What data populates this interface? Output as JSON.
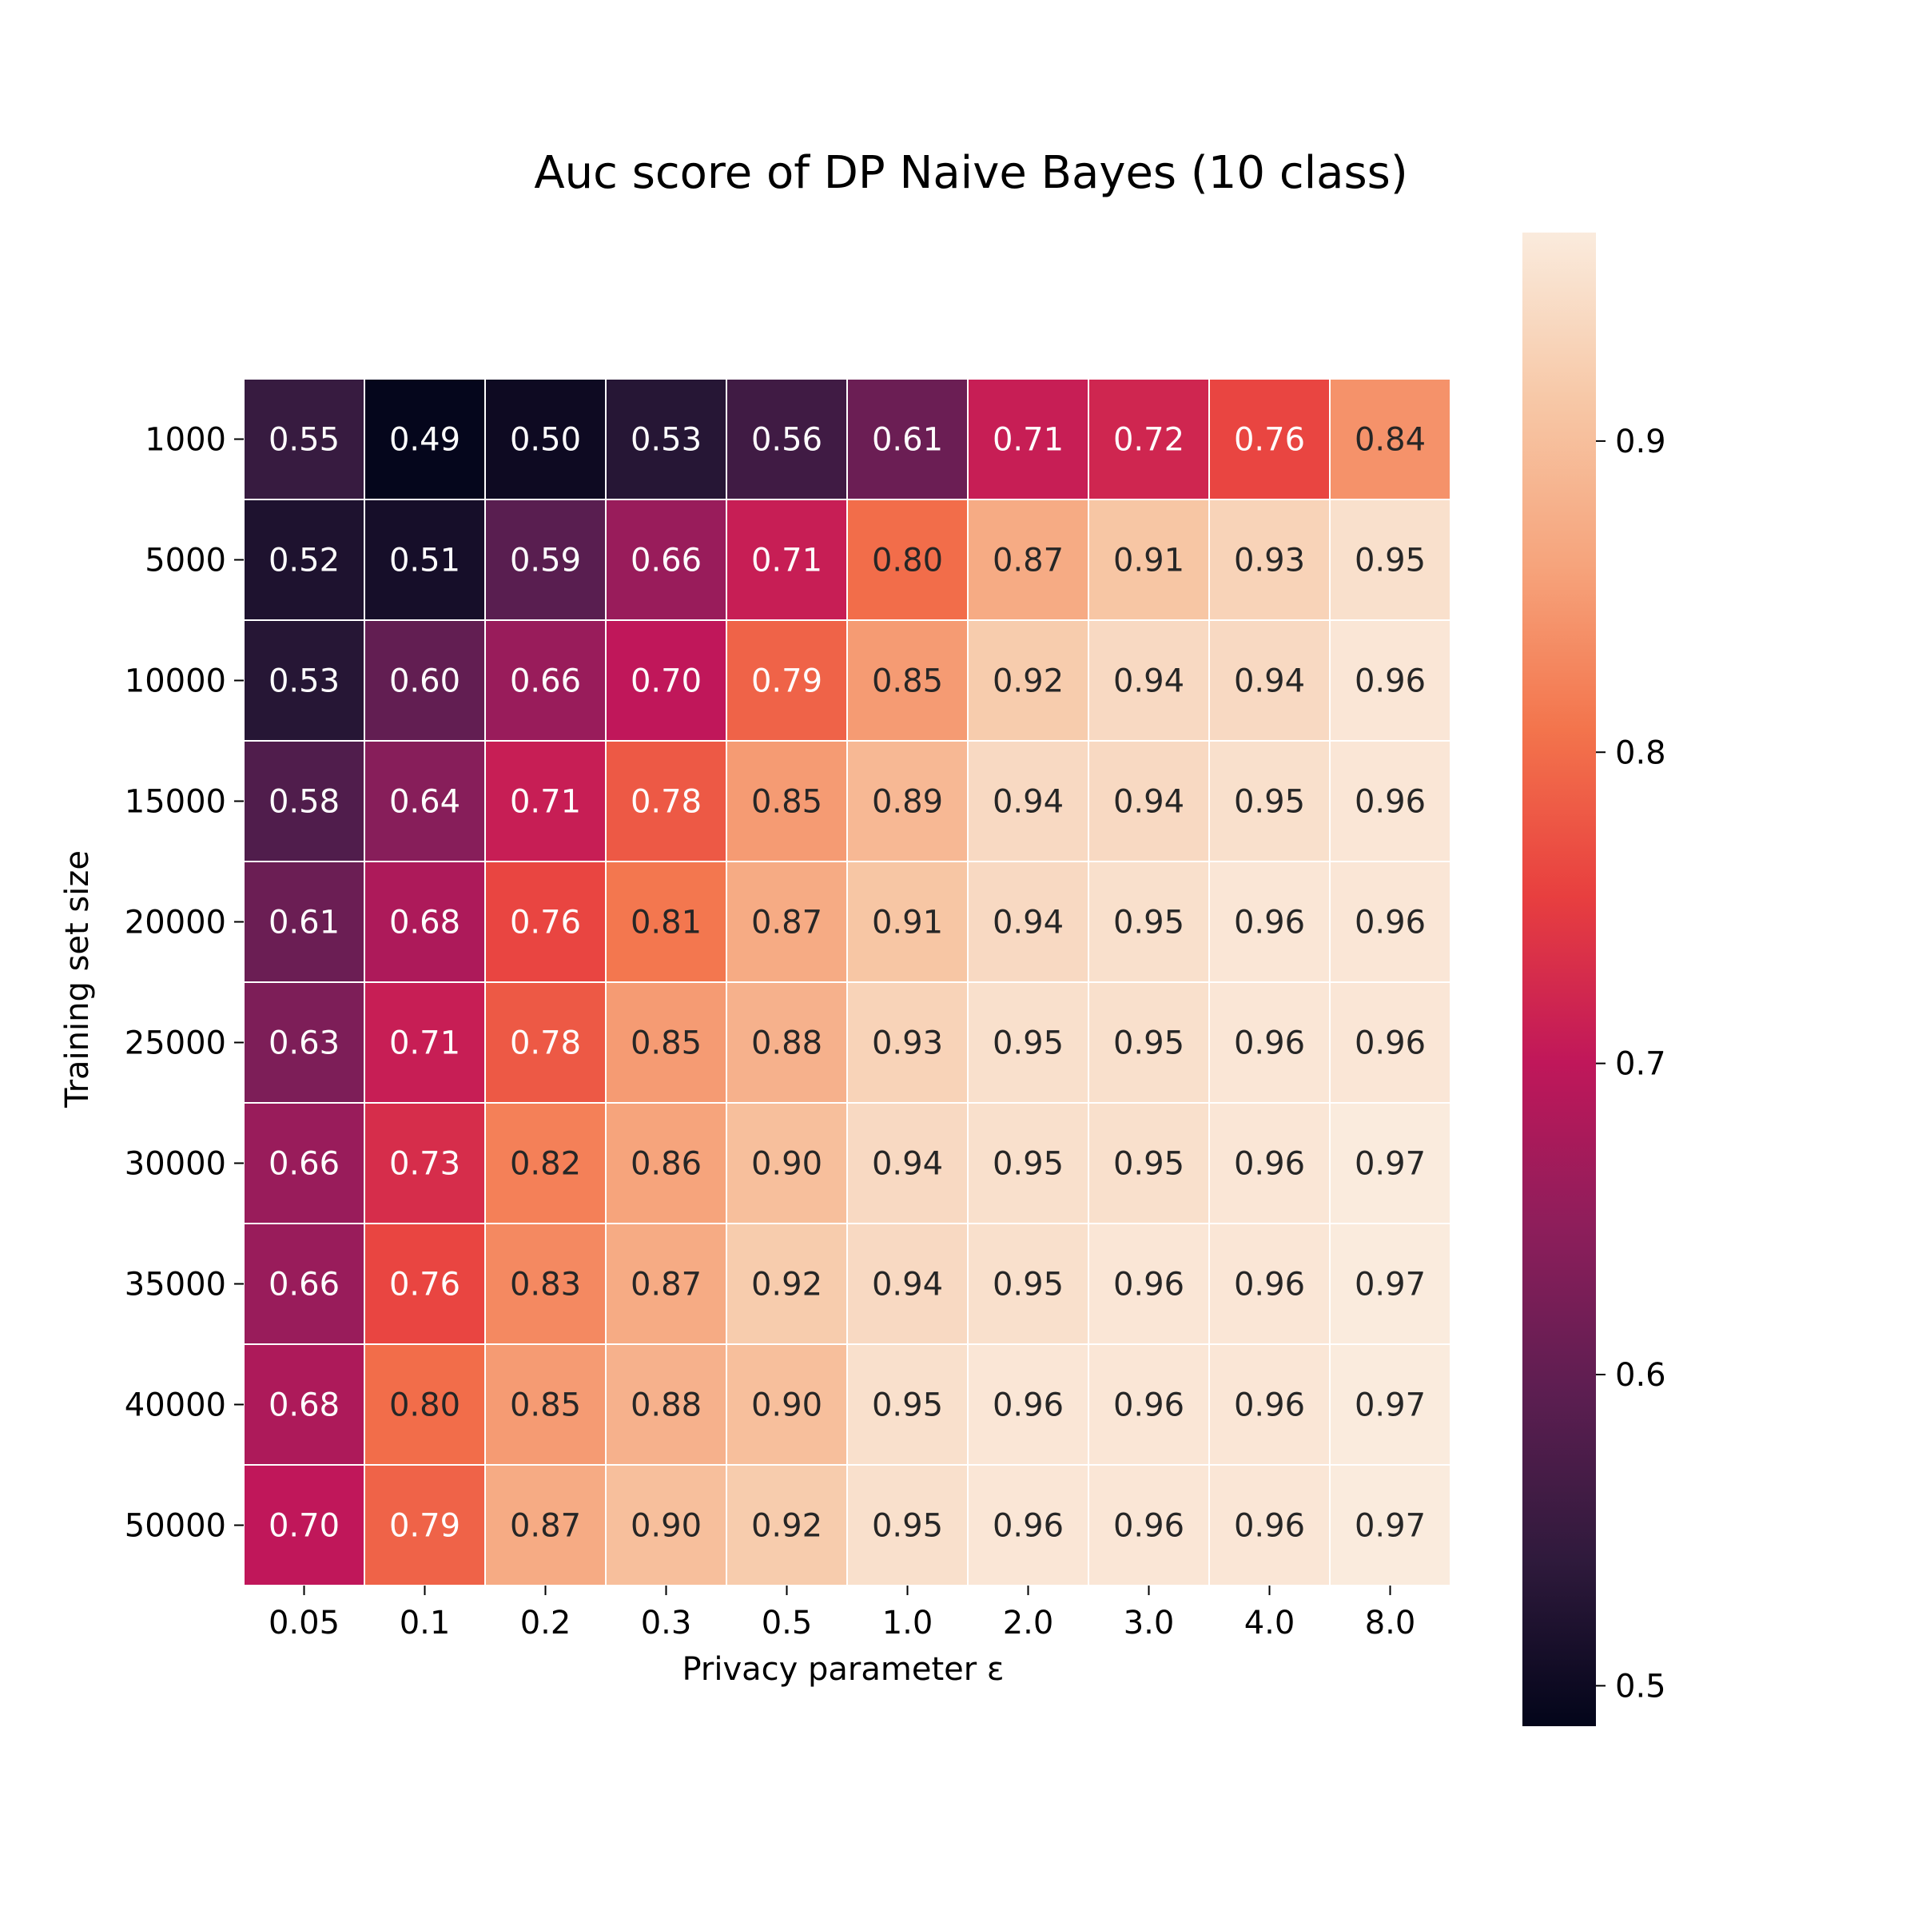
{
  "chart_data": {
    "type": "heatmap",
    "title": "Auc score of DP Naive Bayes (10 class)",
    "xlabel": "Privacy parameter ε",
    "ylabel": "Training set size",
    "x_categories": [
      "0.05",
      "0.1",
      "0.2",
      "0.3",
      "0.5",
      "1.0",
      "2.0",
      "3.0",
      "4.0",
      "8.0"
    ],
    "y_categories": [
      "1000",
      "5000",
      "10000",
      "15000",
      "20000",
      "25000",
      "30000",
      "35000",
      "40000",
      "50000"
    ],
    "values": [
      [
        0.55,
        0.49,
        0.5,
        0.53,
        0.56,
        0.61,
        0.71,
        0.72,
        0.76,
        0.84
      ],
      [
        0.52,
        0.51,
        0.59,
        0.66,
        0.71,
        0.8,
        0.87,
        0.91,
        0.93,
        0.95
      ],
      [
        0.53,
        0.6,
        0.66,
        0.7,
        0.79,
        0.85,
        0.92,
        0.94,
        0.94,
        0.96
      ],
      [
        0.58,
        0.64,
        0.71,
        0.78,
        0.85,
        0.89,
        0.94,
        0.94,
        0.95,
        0.96
      ],
      [
        0.61,
        0.68,
        0.76,
        0.81,
        0.87,
        0.91,
        0.94,
        0.95,
        0.96,
        0.96
      ],
      [
        0.63,
        0.71,
        0.78,
        0.85,
        0.88,
        0.93,
        0.95,
        0.95,
        0.96,
        0.96
      ],
      [
        0.66,
        0.73,
        0.82,
        0.86,
        0.9,
        0.94,
        0.95,
        0.95,
        0.96,
        0.97
      ],
      [
        0.66,
        0.76,
        0.83,
        0.87,
        0.92,
        0.94,
        0.95,
        0.96,
        0.96,
        0.97
      ],
      [
        0.68,
        0.8,
        0.85,
        0.88,
        0.9,
        0.95,
        0.96,
        0.96,
        0.96,
        0.97
      ],
      [
        0.7,
        0.79,
        0.87,
        0.9,
        0.92,
        0.95,
        0.96,
        0.96,
        0.96,
        0.97
      ]
    ],
    "colorbar": {
      "min": 0.487,
      "max": 0.967,
      "ticks": [
        0.5,
        0.6,
        0.7,
        0.8,
        0.9
      ],
      "tick_labels": [
        "0.5",
        "0.6",
        "0.7",
        "0.8",
        "0.9"
      ]
    },
    "colormap": "rocket",
    "colormap_stops": [
      "#03051a",
      "#2f1a3c",
      "#5c1e51",
      "#8d1e5b",
      "#c0175a",
      "#e83f3f",
      "#f3744c",
      "#f6a47c",
      "#f7c8a7",
      "#faebdd"
    ],
    "cell_gridline_color": "#ffffff"
  }
}
